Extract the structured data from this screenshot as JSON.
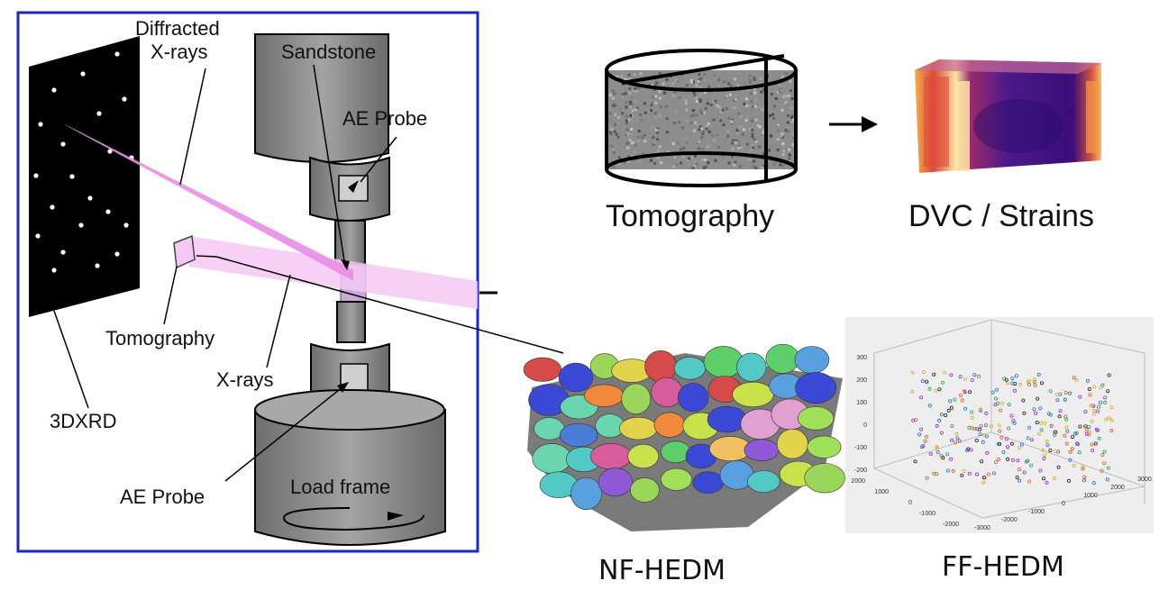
{
  "setup": {
    "labels": {
      "diffracted": "Diffracted",
      "xrays_top": "X-rays",
      "sandstone": "Sandstone",
      "ae_probe_top": "AE Probe",
      "tomography": "Tomography",
      "xrays_bottom": "X-rays",
      "threedxrd": "3DXRD",
      "ae_probe_bottom": "AE Probe",
      "load_frame": "Load frame"
    }
  },
  "outputs": {
    "tomography": "Tomography",
    "dvc": "DVC / Strains",
    "nf_hedm": "NF-HEDM",
    "ff_hedm": "FF-HEDM"
  },
  "ff_plot": {
    "z_ticks": [
      "300",
      "200",
      "100",
      "0",
      "-100",
      "-200"
    ],
    "x_ticks": [
      "2000",
      "1000",
      "0",
      "-1000",
      "-2000"
    ],
    "y_ticks": [
      "-3000",
      "-2000",
      "-1000",
      "0",
      "1000",
      "2000",
      "3000"
    ]
  },
  "colors": {
    "frame_border": "#1d24c8",
    "beam": "#e98de8",
    "beam_light": "#f4c8f3",
    "detector": "#000000",
    "apparatus": "#8a8a8a"
  }
}
